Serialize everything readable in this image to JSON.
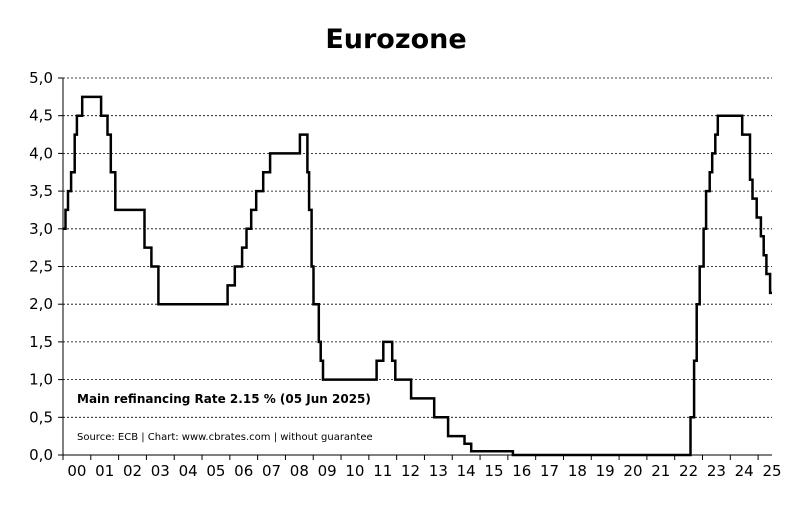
{
  "chart_data": {
    "type": "line",
    "title": "Eurozone",
    "xlabel": "",
    "ylabel": "",
    "x_tick_labels": [
      "00",
      "01",
      "02",
      "03",
      "04",
      "05",
      "06",
      "07",
      "08",
      "09",
      "10",
      "11",
      "12",
      "13",
      "14",
      "15",
      "16",
      "17",
      "18",
      "19",
      "20",
      "21",
      "22",
      "23",
      "24",
      "25"
    ],
    "y_tick_labels": [
      "0,0",
      "0,5",
      "1,0",
      "1,5",
      "2,0",
      "2,5",
      "3,0",
      "3,5",
      "4,0",
      "4,5",
      "5,0"
    ],
    "xlim": [
      2000.0,
      2025.5
    ],
    "ylim": [
      0,
      5
    ],
    "grid": "horizontal dotted",
    "line_style": "step",
    "annotations": [
      "Main refinancing Rate 2.15 % (05 Jun 2025)",
      "Source: ECB | Chart: www.cbrates.com | without guarantee"
    ],
    "series": [
      {
        "x": [
          2000.0,
          2000.09,
          2000.18,
          2000.29,
          2000.42,
          2000.5,
          2000.69,
          2000.84,
          2001.37,
          2001.6,
          2001.72,
          2001.88,
          2002.93,
          2003.18,
          2003.43,
          2005.92,
          2006.18,
          2006.44,
          2006.6,
          2006.77,
          2006.95,
          2007.2,
          2007.45,
          2008.52,
          2008.79,
          2008.85,
          2008.94,
          2009.01,
          2009.2,
          2009.27,
          2009.35,
          2011.28,
          2011.52,
          2011.84,
          2011.95,
          2012.52,
          2013.35,
          2013.85,
          2014.44,
          2014.68,
          2016.18,
          2022.57,
          2022.7,
          2022.79,
          2022.9,
          2023.04,
          2023.13,
          2023.26,
          2023.35,
          2023.46,
          2023.55,
          2023.71,
          2024.43,
          2024.71,
          2024.8,
          2024.95,
          2025.1,
          2025.2,
          2025.3,
          2025.43
        ],
        "y": [
          3.0,
          3.25,
          3.5,
          3.75,
          4.25,
          4.5,
          4.75,
          4.75,
          4.5,
          4.25,
          3.75,
          3.25,
          2.75,
          2.5,
          2.0,
          2.25,
          2.5,
          2.75,
          3.0,
          3.25,
          3.5,
          3.75,
          4.0,
          4.25,
          3.75,
          3.25,
          2.5,
          2.0,
          1.5,
          1.25,
          1.0,
          1.25,
          1.5,
          1.25,
          1.0,
          0.75,
          0.5,
          0.25,
          0.15,
          0.05,
          0.0,
          0.5,
          1.25,
          2.0,
          2.5,
          3.0,
          3.5,
          3.75,
          4.0,
          4.25,
          4.5,
          4.5,
          4.25,
          3.65,
          3.4,
          3.15,
          2.9,
          2.65,
          2.4,
          2.15
        ]
      }
    ]
  }
}
